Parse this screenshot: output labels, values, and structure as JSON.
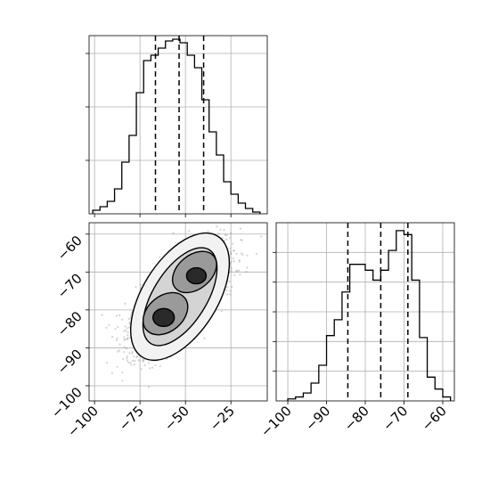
{
  "chart_data": [
    {
      "panel": "x-marginal",
      "type": "histogram",
      "x_range": [
        -103,
        -5
      ],
      "bin_edges": [
        -101,
        -97,
        -93,
        -89,
        -85,
        -81,
        -77,
        -73,
        -69,
        -65,
        -61,
        -57,
        -53,
        -49,
        -45,
        -41,
        -37,
        -33,
        -29,
        -25,
        -21,
        -17,
        -13,
        -9
      ],
      "counts": [
        0.02,
        0.04,
        0.07,
        0.14,
        0.29,
        0.44,
        0.68,
        0.86,
        0.89,
        0.93,
        0.97,
        0.98,
        0.96,
        0.89,
        0.82,
        0.64,
        0.46,
        0.33,
        0.18,
        0.11,
        0.06,
        0.03,
        0.01
      ],
      "quantiles": [
        -66.5,
        -53.5,
        -40
      ],
      "yticks": [
        0.3,
        0.6,
        0.9
      ],
      "xticks": [
        -100,
        -75,
        -50,
        -25
      ],
      "grid": true
    },
    {
      "panel": "joint",
      "type": "scatter",
      "x_range": [
        -103,
        -5
      ],
      "y_range": [
        -104,
        -57
      ],
      "xticks": [
        -100,
        -75,
        -50,
        -25
      ],
      "yticks": [
        -60,
        -70,
        -80,
        -90,
        -100
      ],
      "xtick_labels": [
        "−100",
        "−75",
        "−50",
        "−25"
      ],
      "ytick_labels": [
        "−60",
        "−70",
        "−80",
        "−90",
        "−100"
      ],
      "components": [
        {
          "mean": [
            -62,
            -82
          ],
          "sd": [
            10,
            5
          ],
          "corr": 0.5,
          "weight": 0.5
        },
        {
          "mean": [
            -44,
            -71
          ],
          "sd": [
            10,
            5
          ],
          "corr": 0.5,
          "weight": 0.5
        }
      ],
      "n_points": 2200,
      "grid": true
    },
    {
      "panel": "y-marginal",
      "type": "histogram",
      "x_range": [
        -103,
        -57
      ],
      "bin_edges": [
        -100,
        -98,
        -96,
        -94,
        -92,
        -90,
        -88,
        -86,
        -84,
        -82,
        -80,
        -78,
        -76,
        -74,
        -72,
        -70,
        -68,
        -66,
        -64,
        -62,
        -60,
        -58
      ],
      "counts": [
        0.01,
        0.02,
        0.04,
        0.09,
        0.18,
        0.33,
        0.41,
        0.55,
        0.69,
        0.69,
        0.66,
        0.61,
        0.66,
        0.76,
        0.86,
        0.84,
        0.61,
        0.32,
        0.12,
        0.06,
        0.02
      ],
      "quantiles": [
        -84.5,
        -76,
        -69
      ],
      "yticks": [
        0.15,
        0.3,
        0.45,
        0.6,
        0.75
      ],
      "xticks": [
        -100,
        -90,
        -80,
        -70,
        -60
      ],
      "xtick_labels": [
        "−100",
        "−90",
        "−80",
        "−70",
        "−60"
      ],
      "grid": true
    }
  ]
}
